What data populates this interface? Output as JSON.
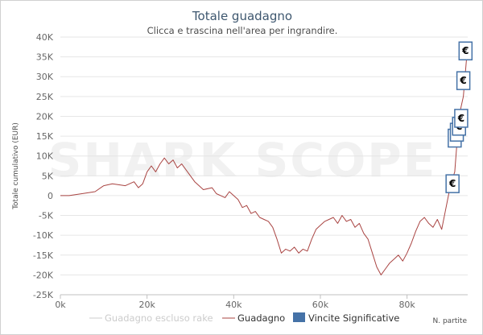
{
  "chart_data": {
    "type": "line",
    "title": "Totale guadagno",
    "subtitle": "Clicca e trascina nell'area per ingrandire.",
    "ylabel": "Totale cumulativo (EUR)",
    "xlabel": "N. partite",
    "xlim": [
      0,
      94000
    ],
    "ylim": [
      -25000,
      40000
    ],
    "x_ticks": [
      "0k",
      "20k",
      "40k",
      "60k",
      "80k"
    ],
    "x_tick_values": [
      0,
      20000,
      40000,
      60000,
      80000
    ],
    "y_ticks": [
      "40K",
      "35K",
      "30K",
      "25K",
      "20K",
      "15K",
      "10K",
      "5K",
      "0",
      "-5K",
      "-10K",
      "-15K",
      "-20K",
      "-25K"
    ],
    "y_tick_values": [
      40000,
      35000,
      30000,
      25000,
      20000,
      15000,
      10000,
      5000,
      0,
      -5000,
      -10000,
      -15000,
      -20000,
      -25000
    ],
    "grid": true,
    "legend_placement": "bottom",
    "series": [
      {
        "name": "Guadagno",
        "color": "#a94442",
        "x": [
          0,
          2000,
          5000,
          8000,
          10000,
          12000,
          15000,
          17000,
          18000,
          19000,
          20000,
          21000,
          22000,
          23000,
          24000,
          25000,
          26000,
          27000,
          28000,
          30000,
          31000,
          32000,
          33000,
          35000,
          36000,
          37000,
          38000,
          39000,
          40000,
          41000,
          42000,
          43000,
          44000,
          45000,
          46000,
          47000,
          48000,
          49000,
          50000,
          51000,
          52000,
          53000,
          54000,
          55000,
          56000,
          57000,
          58000,
          59000,
          60000,
          61000,
          62000,
          63000,
          64000,
          65000,
          66000,
          67000,
          68000,
          69000,
          70000,
          71000,
          72000,
          73000,
          74000,
          75000,
          76000,
          77000,
          78000,
          79000,
          80000,
          81000,
          82000,
          83000,
          84000,
          85000,
          86000,
          87000,
          88000,
          89000,
          90000,
          91000,
          92000,
          93000,
          94000
        ],
        "values": [
          0,
          0,
          500,
          1000,
          2500,
          3000,
          2500,
          3500,
          2000,
          3000,
          6000,
          7500,
          6000,
          8000,
          9500,
          8000,
          9000,
          7000,
          8000,
          5000,
          3500,
          2500,
          1500,
          2000,
          500,
          0,
          -500,
          1000,
          0,
          -1000,
          -3000,
          -2500,
          -4500,
          -4000,
          -5500,
          -6000,
          -6500,
          -8000,
          -11000,
          -14500,
          -13500,
          -14000,
          -13000,
          -14500,
          -13500,
          -14000,
          -11000,
          -8500,
          -7500,
          -6500,
          -6000,
          -5500,
          -7000,
          -5000,
          -6500,
          -6000,
          -8000,
          -7000,
          -9500,
          -11000,
          -14500,
          -18000,
          -20000,
          -18500,
          -17000,
          -16000,
          -15000,
          -16500,
          -14500,
          -12000,
          -9000,
          -6500,
          -5500,
          -7000,
          -8000,
          -6000,
          -8500,
          -3000,
          2500,
          6000,
          20000,
          25000,
          38000
        ]
      },
      {
        "name": "Guadagno escluso rake",
        "color": "#cccccc",
        "x": [],
        "values": []
      }
    ],
    "significant_wins": {
      "name": "Vincite Significative",
      "color": "#4572a7",
      "label": "€",
      "x": [
        90500,
        91000,
        91500,
        92000,
        92500,
        93000,
        93500
      ],
      "values": [
        3000,
        14500,
        16000,
        17500,
        19500,
        29000,
        36500
      ]
    }
  },
  "watermark": "SHARK SCOPE"
}
